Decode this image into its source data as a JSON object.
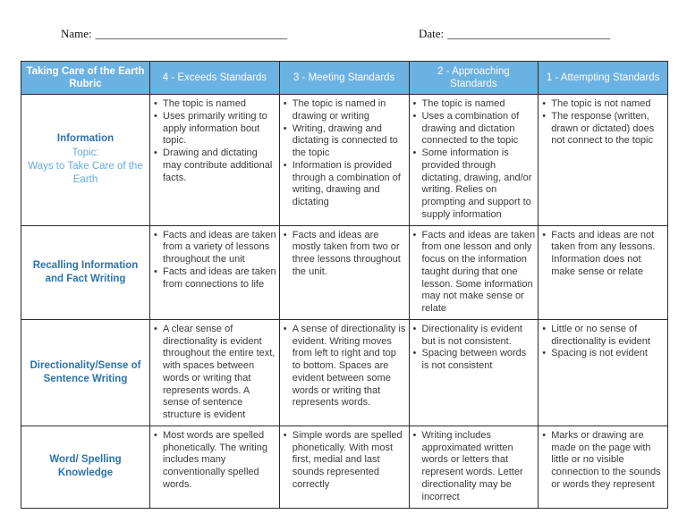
{
  "colors": {
    "header_bg": "#6BB1E1",
    "header_text": "#FDFEFF",
    "label_dark": "#2E73A9",
    "label_light": "#64ABDB",
    "body_text": "#3A3A3A",
    "border": "#2B2B2B"
  },
  "header": {
    "name_label": "Name:",
    "name_line": "_________________________________",
    "date_label": "Date:",
    "date_line": "____________________________"
  },
  "rubric": {
    "title": "Taking Care of the Earth\nRubric",
    "columns": [
      "4 - Exceeds Standards",
      "3 - Meeting Standards",
      "2 - Approaching\nStandards",
      "1 - Attempting Standards"
    ],
    "rows": [
      {
        "label": "Information",
        "sublabel": "Topic:\nWays to Take Care of the Earth",
        "cells": [
          [
            "The topic is named",
            "Uses primarily writing to apply information bout topic.",
            "Drawing and dictating may contribute additional facts."
          ],
          [
            "The topic is named in drawing or writing",
            "Writing, drawing and dictating is connected to the topic",
            "Information is provided through a combination of writing, drawing and dictating"
          ],
          [
            "The topic is named",
            "Uses a combination of drawing and dictation connected to the topic",
            "Some information is provided through dictating, drawing, and/or writing. Relies on prompting and support to supply information"
          ],
          [
            "The topic is not named",
            "The response (written, drawn or dictated) does not connect to the topic"
          ]
        ]
      },
      {
        "label": "Recalling Information and Fact Writing",
        "sublabel": "",
        "cells": [
          [
            "Facts and ideas are taken from a variety of lessons throughout the unit",
            "Facts and ideas are taken from connections to life"
          ],
          [
            "Facts and ideas are mostly taken from two or three lessons throughout the unit."
          ],
          [
            "Facts and ideas are taken from one lesson and only focus on the information taught during that one lesson. Some information may not make sense or relate"
          ],
          [
            "Facts and ideas are not taken from any lessons. Information does not make sense or relate"
          ]
        ]
      },
      {
        "label": "Directionality/Sense of Sentence Writing",
        "sublabel": "",
        "cells": [
          [
            "A clear sense of directionality is evident throughout the entire text, with spaces between words or writing that represents words. A sense of sentence structure is evident"
          ],
          [
            "A sense of directionality is evident. Writing moves from left to right and top to bottom. Spaces are evident between some words or writing that represents words."
          ],
          [
            "Directionality is evident but is not consistent.",
            "Spacing between words is not consistent"
          ],
          [
            "Little or no sense of directionality is evident",
            "Spacing is not evident"
          ]
        ]
      },
      {
        "label": "Word/ Spelling Knowledge",
        "sublabel": "",
        "cells": [
          [
            "Most words are spelled phonetically. The writing includes many conventionally spelled words."
          ],
          [
            "Simple words are spelled phonetically. With most first, medial and last sounds represented correctly"
          ],
          [
            "Writing includes approximated written words or letters that represent words. Letter directionality may be incorrect"
          ],
          [
            "Marks or drawing are made on the page with little or no visible connection to the sounds or words they represent"
          ]
        ]
      }
    ]
  }
}
